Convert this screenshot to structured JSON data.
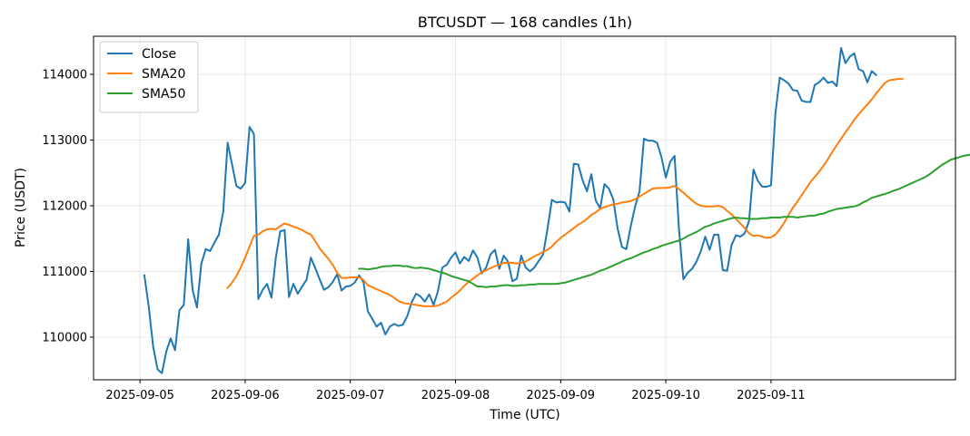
{
  "chart_data": {
    "type": "line",
    "title": "BTCUSDT — 168 candles (1h)",
    "xlabel": "Time (UTC)",
    "ylabel": "Price (USDT)",
    "x_ticks": [
      "2025-09-05",
      "2025-09-06",
      "2025-09-07",
      "2025-09-08",
      "2025-09-09",
      "2025-09-10",
      "2025-09-11"
    ],
    "y_ticks": [
      110000,
      111000,
      112000,
      113000,
      114000
    ],
    "xlim_hours": [
      -10.6,
      186.1
    ],
    "ylim": [
      109350,
      114580
    ],
    "grid": true,
    "legend_position": "top-left",
    "series": [
      {
        "name": "Close",
        "color": "#1f77b4",
        "start_hour": 1,
        "values": [
          110940,
          110460,
          109860,
          109510,
          109450,
          109780,
          109980,
          109800,
          110410,
          110490,
          111490,
          110720,
          110450,
          111120,
          111340,
          111310,
          111440,
          111560,
          111910,
          112960,
          112630,
          112300,
          112260,
          112350,
          113200,
          113090,
          110580,
          110720,
          110810,
          110600,
          111210,
          111610,
          111630,
          110610,
          110810,
          110660,
          110770,
          110870,
          111210,
          111050,
          110880,
          110720,
          110760,
          110840,
          110960,
          110710,
          110770,
          110780,
          110830,
          110940,
          110840,
          110390,
          110280,
          110160,
          110220,
          110040,
          110160,
          110200,
          110170,
          110190,
          110320,
          110530,
          110660,
          110620,
          110540,
          110650,
          110490,
          110700,
          111060,
          111100,
          111210,
          111290,
          111120,
          111220,
          111160,
          111320,
          111210,
          110970,
          111060,
          111260,
          111330,
          111040,
          111240,
          111150,
          110850,
          110890,
          111240,
          111060,
          111000,
          111060,
          111160,
          111260,
          111650,
          112090,
          112050,
          112060,
          112050,
          111910,
          112640,
          112630,
          112390,
          112220,
          112480,
          112080,
          111960,
          112330,
          112260,
          112100,
          111650,
          111370,
          111340,
          111690,
          111990,
          112220,
          113020,
          112990,
          112990,
          112960,
          112740,
          112430,
          112670,
          112760,
          111640,
          110880,
          110980,
          111040,
          111150,
          111310,
          111530,
          111330,
          111560,
          111560,
          111020,
          111010,
          111400,
          111550,
          111530,
          111580,
          111770,
          112550,
          112380,
          112290,
          112290,
          112310,
          113400,
          113950,
          113910,
          113860,
          113760,
          113750,
          113600,
          113580,
          113580,
          113840,
          113880,
          113950,
          113870,
          113890,
          113820,
          114400,
          114170,
          114270,
          114320,
          114080,
          114050,
          113880,
          114050,
          113990
        ]
      },
      {
        "name": "SMA20",
        "color": "#ff7f0e",
        "start_hour": 20,
        "values": [
          110750,
          110830,
          110930,
          111060,
          111210,
          111380,
          111540,
          111560,
          111610,
          111640,
          111650,
          111640,
          111690,
          111730,
          111710,
          111680,
          111660,
          111630,
          111590,
          111560,
          111460,
          111350,
          111270,
          111190,
          111100,
          110980,
          110900,
          110900,
          110910,
          110910,
          110910,
          110870,
          110790,
          110760,
          110730,
          110700,
          110670,
          110640,
          110600,
          110550,
          110520,
          110510,
          110500,
          110490,
          110480,
          110470,
          110470,
          110470,
          110480,
          110510,
          110540,
          110600,
          110650,
          110710,
          110780,
          110840,
          110890,
          110940,
          110990,
          111020,
          111050,
          111080,
          111100,
          111130,
          111130,
          111130,
          111120,
          111130,
          111150,
          111190,
          111230,
          111260,
          111300,
          111330,
          111380,
          111450,
          111510,
          111560,
          111610,
          111660,
          111710,
          111750,
          111800,
          111860,
          111900,
          111950,
          111980,
          112000,
          112020,
          112030,
          112050,
          112060,
          112070,
          112100,
          112140,
          112180,
          112220,
          112260,
          112270,
          112270,
          112270,
          112280,
          112300,
          112250,
          112200,
          112140,
          112080,
          112030,
          112000,
          111990,
          111990,
          111990,
          112000,
          111980,
          111920,
          111870,
          111800,
          111730,
          111660,
          111580,
          111540,
          111550,
          111530,
          111510,
          111520,
          111560,
          111640,
          111740,
          111860,
          111970,
          112060,
          112160,
          112260,
          112360,
          112440,
          112520,
          112610,
          112710,
          112820,
          112920,
          113020,
          113120,
          113210,
          113310,
          113390,
          113470,
          113540,
          113620,
          113710,
          113790,
          113870,
          113910,
          113920,
          113930,
          113930
        ]
      },
      {
        "name": "SMA50",
        "color": "#2ca02c",
        "start_hour": 50,
        "values": [
          111040,
          111040,
          111030,
          111040,
          111050,
          111070,
          111080,
          111080,
          111090,
          111090,
          111080,
          111080,
          111060,
          111050,
          111060,
          111050,
          111040,
          111020,
          111000,
          110980,
          110960,
          110930,
          110910,
          110890,
          110870,
          110850,
          110810,
          110770,
          110770,
          110760,
          110770,
          110770,
          110780,
          110790,
          110790,
          110780,
          110780,
          110790,
          110790,
          110800,
          110800,
          110810,
          110810,
          110810,
          110810,
          110810,
          110820,
          110830,
          110850,
          110870,
          110890,
          110910,
          110930,
          110950,
          110980,
          111010,
          111030,
          111060,
          111090,
          111120,
          111150,
          111180,
          111200,
          111230,
          111260,
          111290,
          111310,
          111340,
          111360,
          111390,
          111410,
          111430,
          111450,
          111470,
          111500,
          111540,
          111570,
          111600,
          111640,
          111680,
          111700,
          111730,
          111750,
          111770,
          111790,
          111810,
          111820,
          111810,
          111810,
          111800,
          111800,
          111800,
          111810,
          111810,
          111820,
          111820,
          111820,
          111830,
          111830,
          111830,
          111820,
          111830,
          111840,
          111850,
          111850,
          111870,
          111880,
          111910,
          111930,
          111950,
          111960,
          111970,
          111980,
          111990,
          112010,
          112050,
          112080,
          112120,
          112140,
          112160,
          112180,
          112200,
          112230,
          112250,
          112280,
          112310,
          112340,
          112370,
          112400,
          112430,
          112470,
          112520,
          112570,
          112620,
          112660,
          112700,
          112720,
          112740,
          112760,
          112770,
          112790
        ]
      }
    ]
  }
}
